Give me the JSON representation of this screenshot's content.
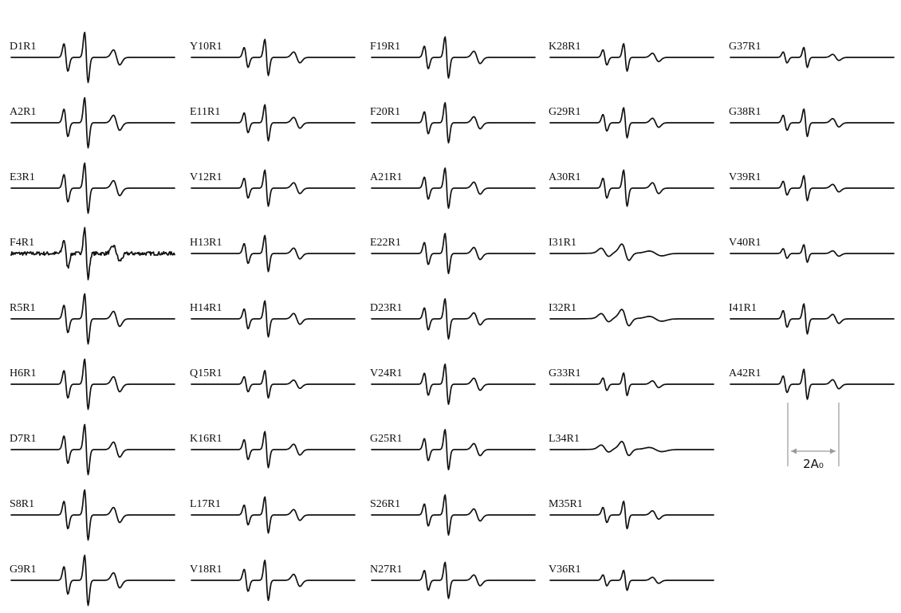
{
  "chart_data": {
    "type": "line",
    "layout": "grid of EPR spectra, 5 columns",
    "columns": [
      [
        "D1R1",
        "A2R1",
        "E3R1",
        "F4R1",
        "R5R1",
        "H6R1",
        "D7R1",
        "S8R1",
        "G9R1"
      ],
      [
        "Y10R1",
        "E11R1",
        "V12R1",
        "H13R1",
        "H14R1",
        "Q15R1",
        "K16R1",
        "L17R1",
        "V18R1"
      ],
      [
        "F19R1",
        "F20R1",
        "A21R1",
        "E22R1",
        "D23R1",
        "V24R1",
        "G25R1",
        "S26R1",
        "N27R1"
      ],
      [
        "K28R1",
        "G29R1",
        "A30R1",
        "I31R1",
        "I32R1",
        "G33R1",
        "L34R1",
        "M35R1",
        "V36R1"
      ],
      [
        "G37R1",
        "G38R1",
        "V39R1",
        "V40R1",
        "I41R1",
        "A42R1"
      ]
    ],
    "amplitudes": [
      [
        1.0,
        1.0,
        1.0,
        1.0,
        1.0,
        1.0,
        1.0,
        1.0,
        1.0
      ],
      [
        0.72,
        0.72,
        0.72,
        0.72,
        0.72,
        0.55,
        0.72,
        0.72,
        0.8
      ],
      [
        0.82,
        0.8,
        0.8,
        0.8,
        0.8,
        0.8,
        0.8,
        0.8,
        0.72
      ],
      [
        0.55,
        0.6,
        0.72,
        0.35,
        0.35,
        0.45,
        0.3,
        0.55,
        0.4
      ],
      [
        0.4,
        0.55,
        0.5,
        0.35,
        0.6,
        0.6
      ]
    ],
    "noisy": [
      "F4R1"
    ],
    "broad": [
      "I31R1",
      "I32R1",
      "L34R1"
    ],
    "annotation": {
      "label": "2A₀",
      "spectrum": "A42R1"
    }
  }
}
